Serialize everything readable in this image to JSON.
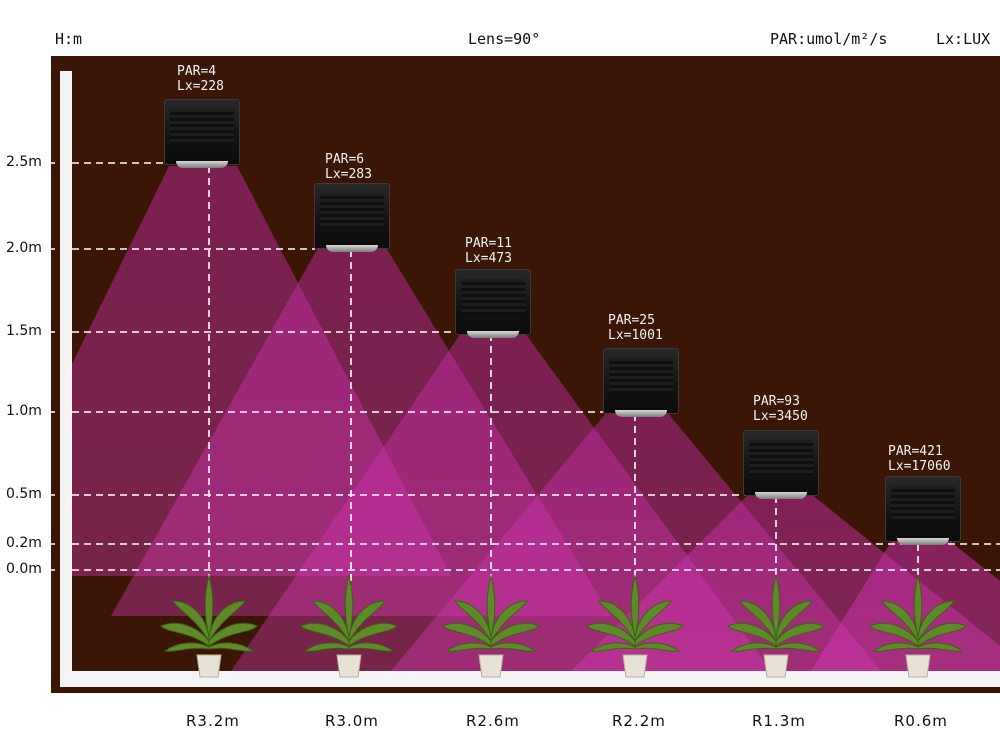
{
  "header": {
    "height_unit": "H:m",
    "lens": "Lens=90°",
    "par_unit": "PAR:umol/m²/s",
    "lux_unit": "Lx:LUX"
  },
  "height_labels": [
    "2.5m",
    "2.0m",
    "1.5m",
    "1.0m",
    "0.5m",
    "0.2m",
    "0.0m"
  ],
  "lamps": [
    {
      "par": "PAR=4",
      "lux": "Lx=228",
      "range": "R3.2m"
    },
    {
      "par": "PAR=6",
      "lux": "Lx=283",
      "range": "R3.0m"
    },
    {
      "par": "PAR=11",
      "lux": "Lx=473",
      "range": "R2.6m"
    },
    {
      "par": "PAR=25",
      "lux": "Lx=1001",
      "range": "R2.2m"
    },
    {
      "par": "PAR=93",
      "lux": "Lx=3450",
      "range": "R1.3m"
    },
    {
      "par": "PAR=421",
      "lux": "Lx=17060",
      "range": "R0.6m"
    }
  ],
  "colors": {
    "background": "#3b1606",
    "beam": "#d230b0",
    "guide_lines": "#ffffff"
  },
  "icons": {
    "lamp": "grow-light-fixture-icon",
    "plant": "potted-plant-icon"
  }
}
